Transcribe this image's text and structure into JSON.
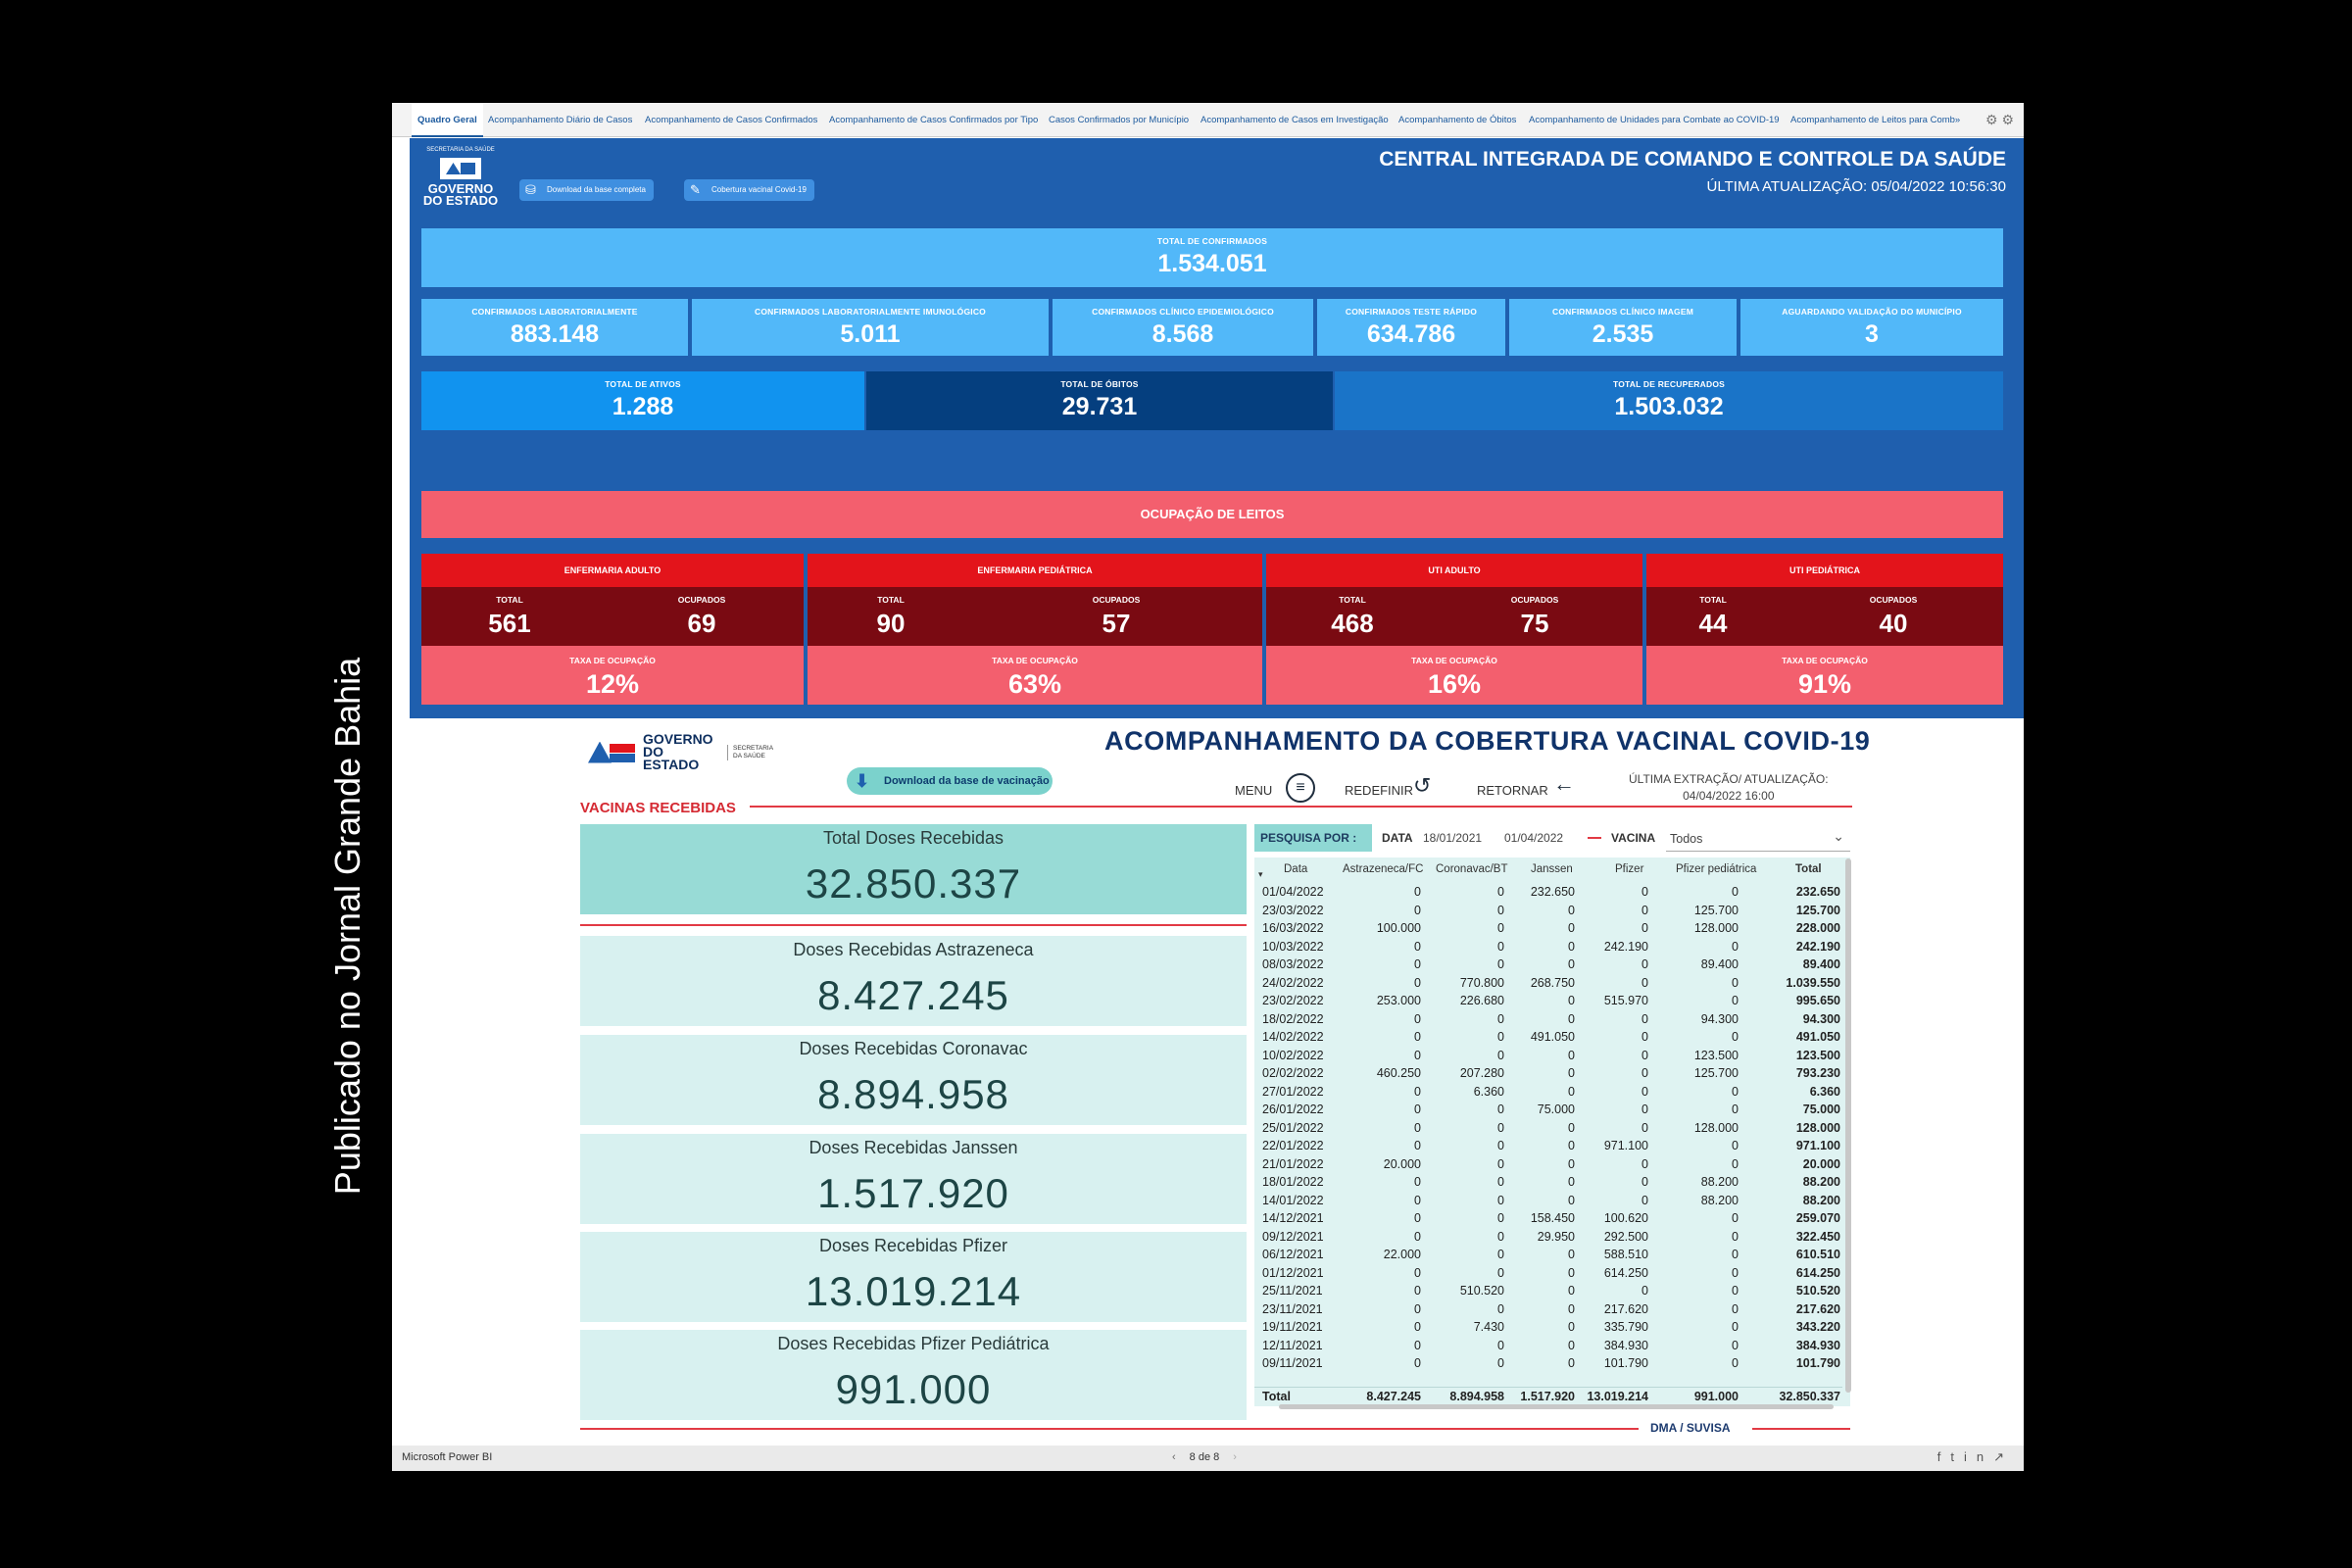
{
  "caption": "Publicado no Jornal Grande Bahia",
  "tabs": [
    "Quadro Geral",
    "Acompanhamento Diário de Casos",
    "Acompanhamento de Casos Confirmados",
    "Acompanhamento de Casos Confirmados por Tipo",
    "Casos Confirmados por Município",
    "Acompanhamento de Casos em Investigação",
    "Acompanhamento de Óbitos",
    "Acompanhamento de Unidades para Combate ao COVID-19",
    "Acompanhamento de Leitos para Comb»"
  ],
  "dashboard": {
    "logo": {
      "top": "SECRETARIA DA SAÚDE",
      "main": "GOVERNO DO ESTADO"
    },
    "buttons": {
      "download": "Download da base completa",
      "vacina": "Cobertura vacinal Covid-19"
    },
    "title": "CENTRAL INTEGRADA DE COMANDO E CONTROLE DA SAÚDE",
    "updated": "ÚLTIMA ATUALIZAÇÃO: 05/04/2022 10:56:30",
    "total_confirmados": {
      "label": "TOTAL DE CONFIRMADOS",
      "value": "1.534.051"
    },
    "confirmados": [
      {
        "label": "CONFIRMADOS LABORATORIALMENTE",
        "value": "883.148"
      },
      {
        "label": "CONFIRMADOS LABORATORIALMENTE IMUNOLÓGICO",
        "value": "5.011"
      },
      {
        "label": "CONFIRMADOS CLÍNICO EPIDEMIOLÓGICO",
        "value": "8.568"
      },
      {
        "label": "CONFIRMADOS TESTE RÁPIDO",
        "value": "634.786"
      },
      {
        "label": "CONFIRMADOS CLÍNICO IMAGEM",
        "value": "2.535"
      },
      {
        "label": "AGUARDANDO VALIDAÇÃO DO MUNICÍPIO",
        "value": "3"
      }
    ],
    "ativos": {
      "label": "TOTAL DE ATIVOS",
      "value": "1.288"
    },
    "obitos": {
      "label": "TOTAL DE ÓBITOS",
      "value": "29.731"
    },
    "recuperados": {
      "label": "TOTAL DE RECUPERADOS",
      "value": "1.503.032"
    },
    "ocupacao_title": "OCUPAÇÃO DE LEITOS",
    "beds": [
      {
        "title": "ENFERMARIA ADULTO",
        "total_label": "TOTAL",
        "total": "561",
        "occ_label": "OCUPADOS",
        "occ": "69",
        "rate_label": "TAXA DE OCUPAÇÃO",
        "rate": "12%"
      },
      {
        "title": "ENFERMARIA PEDIÁTRICA",
        "total_label": "TOTAL",
        "total": "90",
        "occ_label": "OCUPADOS",
        "occ": "57",
        "rate_label": "TAXA DE OCUPAÇÃO",
        "rate": "63%"
      },
      {
        "title": "UTI ADULTO",
        "total_label": "TOTAL",
        "total": "468",
        "occ_label": "OCUPADOS",
        "occ": "75",
        "rate_label": "TAXA DE OCUPAÇÃO",
        "rate": "16%"
      },
      {
        "title": "UTI PEDIÁTRICA",
        "total_label": "TOTAL",
        "total": "44",
        "occ_label": "OCUPADOS",
        "occ": "40",
        "rate_label": "TAXA DE OCUPAÇÃO",
        "rate": "91%"
      }
    ]
  },
  "vacinacao": {
    "logo": {
      "main": "GOVERNO DO ESTADO",
      "sub": "SECRETARIA DA SAÚDE"
    },
    "title": "ACOMPANHAMENTO DA COBERTURA VACINAL COVID-19",
    "download_label": "Download da base de vacinação",
    "menu": "MENU",
    "redefinir": "REDEFINIR",
    "retornar": "RETORNAR",
    "extracao_label": "ÚLTIMA EXTRAÇÃO/ ATUALIZAÇÃO:",
    "extracao_value": "04/04/2022 16:00",
    "section_label": "VACINAS RECEBIDAS",
    "cards": [
      {
        "label": "Total Doses Recebidas",
        "value": "32.850.337"
      },
      {
        "label": "Doses Recebidas Astrazeneca",
        "value": "8.427.245"
      },
      {
        "label": "Doses Recebidas Coronavac",
        "value": "8.894.958"
      },
      {
        "label": "Doses Recebidas Janssen",
        "value": "1.517.920"
      },
      {
        "label": "Doses Recebidas Pfizer",
        "value": "13.019.214"
      },
      {
        "label": "Doses Recebidas Pfizer Pediátrica",
        "value": "991.000"
      }
    ],
    "search": {
      "label": "PESQUISA POR :",
      "data_label": "DATA",
      "date_from": "18/01/2021",
      "date_to": "01/04/2022",
      "vacina_label": "VACINA",
      "vacina_value": "Todos"
    },
    "table": {
      "columns": [
        "Data",
        "Astrazeneca/FC",
        "Coronavac/BT",
        "Janssen",
        "Pfizer",
        "Pfizer pediátrica",
        "Total"
      ],
      "rows": [
        [
          "01/04/2022",
          "0",
          "0",
          "232.650",
          "0",
          "0",
          "232.650"
        ],
        [
          "23/03/2022",
          "0",
          "0",
          "0",
          "0",
          "125.700",
          "125.700"
        ],
        [
          "16/03/2022",
          "100.000",
          "0",
          "0",
          "0",
          "128.000",
          "228.000"
        ],
        [
          "10/03/2022",
          "0",
          "0",
          "0",
          "242.190",
          "0",
          "242.190"
        ],
        [
          "08/03/2022",
          "0",
          "0",
          "0",
          "0",
          "89.400",
          "89.400"
        ],
        [
          "24/02/2022",
          "0",
          "770.800",
          "268.750",
          "0",
          "0",
          "1.039.550"
        ],
        [
          "23/02/2022",
          "253.000",
          "226.680",
          "0",
          "515.970",
          "0",
          "995.650"
        ],
        [
          "18/02/2022",
          "0",
          "0",
          "0",
          "0",
          "94.300",
          "94.300"
        ],
        [
          "14/02/2022",
          "0",
          "0",
          "491.050",
          "0",
          "0",
          "491.050"
        ],
        [
          "10/02/2022",
          "0",
          "0",
          "0",
          "0",
          "123.500",
          "123.500"
        ],
        [
          "02/02/2022",
          "460.250",
          "207.280",
          "0",
          "0",
          "125.700",
          "793.230"
        ],
        [
          "27/01/2022",
          "0",
          "6.360",
          "0",
          "0",
          "0",
          "6.360"
        ],
        [
          "26/01/2022",
          "0",
          "0",
          "75.000",
          "0",
          "0",
          "75.000"
        ],
        [
          "25/01/2022",
          "0",
          "0",
          "0",
          "0",
          "128.000",
          "128.000"
        ],
        [
          "22/01/2022",
          "0",
          "0",
          "0",
          "971.100",
          "0",
          "971.100"
        ],
        [
          "21/01/2022",
          "20.000",
          "0",
          "0",
          "0",
          "0",
          "20.000"
        ],
        [
          "18/01/2022",
          "0",
          "0",
          "0",
          "0",
          "88.200",
          "88.200"
        ],
        [
          "14/01/2022",
          "0",
          "0",
          "0",
          "0",
          "88.200",
          "88.200"
        ],
        [
          "14/12/2021",
          "0",
          "0",
          "158.450",
          "100.620",
          "0",
          "259.070"
        ],
        [
          "09/12/2021",
          "0",
          "0",
          "29.950",
          "292.500",
          "0",
          "322.450"
        ],
        [
          "06/12/2021",
          "22.000",
          "0",
          "0",
          "588.510",
          "0",
          "610.510"
        ],
        [
          "01/12/2021",
          "0",
          "0",
          "0",
          "614.250",
          "0",
          "614.250"
        ],
        [
          "25/11/2021",
          "0",
          "510.520",
          "0",
          "0",
          "0",
          "510.520"
        ],
        [
          "23/11/2021",
          "0",
          "0",
          "0",
          "217.620",
          "0",
          "217.620"
        ],
        [
          "19/11/2021",
          "0",
          "7.430",
          "0",
          "335.790",
          "0",
          "343.220"
        ],
        [
          "12/11/2021",
          "0",
          "0",
          "0",
          "384.930",
          "0",
          "384.930"
        ],
        [
          "09/11/2021",
          "0",
          "0",
          "0",
          "101.790",
          "0",
          "101.790"
        ]
      ],
      "total": [
        "Total",
        "8.427.245",
        "8.894.958",
        "1.517.920",
        "13.019.214",
        "991.000",
        "32.850.337"
      ]
    },
    "footer": "DMA / SUVISA"
  },
  "powerbi": {
    "brand": "Microsoft Power BI",
    "pager": "8 de 8"
  }
}
